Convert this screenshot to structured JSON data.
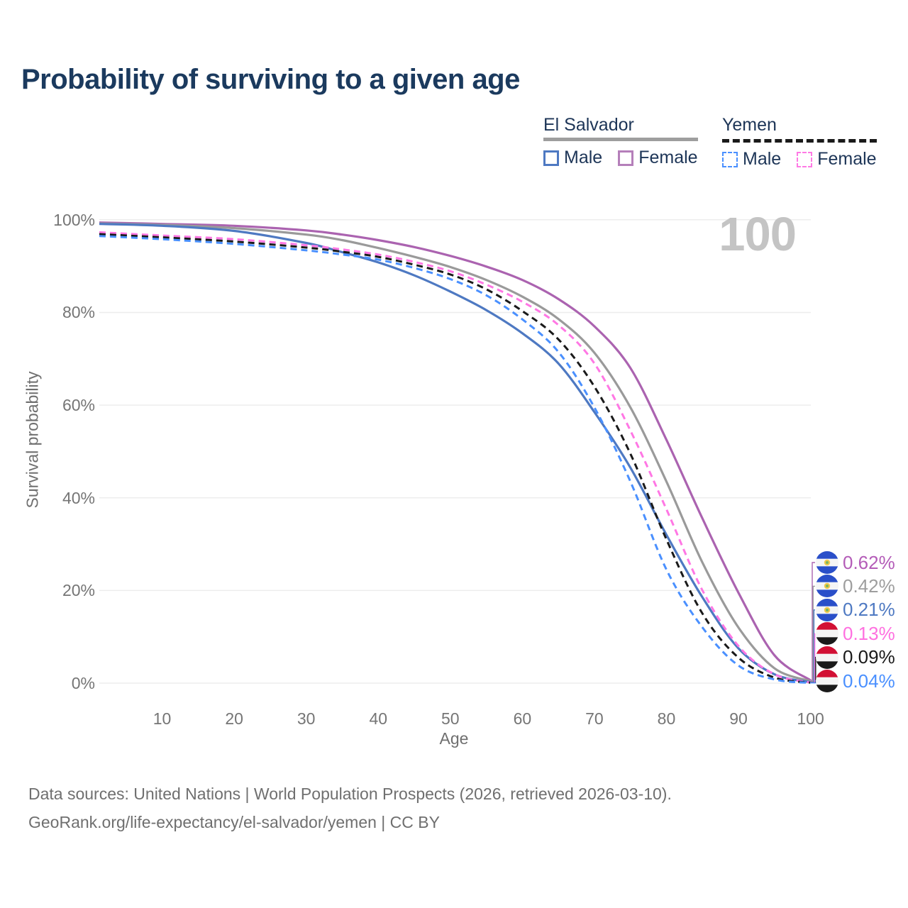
{
  "title": "Probability of surviving to a given age",
  "watermark": "100",
  "legend": {
    "groups": [
      {
        "name": "El Salvador",
        "line_style": "solid",
        "line_color": "#9e9e9e",
        "items": [
          {
            "label": "Male",
            "color": "#4e79c2",
            "dash": "solid"
          },
          {
            "label": "Female",
            "color": "#b57fba",
            "dash": "solid"
          }
        ]
      },
      {
        "name": "Yemen",
        "line_style": "dashed",
        "line_color": "#1a1a1a",
        "items": [
          {
            "label": "Male",
            "color": "#4a90ff",
            "dash": "dashed"
          },
          {
            "label": "Female",
            "color": "#ff7ae5",
            "dash": "dashed"
          }
        ]
      }
    ]
  },
  "chart_data": {
    "type": "line",
    "title": "Probability of surviving to a given age",
    "xlabel": "Age",
    "ylabel": "Survival probability",
    "xlim": [
      0,
      100
    ],
    "ylim": [
      0,
      100
    ],
    "grid": true,
    "legend_position": "top-right",
    "x_ticks": [
      10,
      20,
      30,
      40,
      50,
      60,
      70,
      80,
      90,
      100
    ],
    "y_ticks": [
      0,
      20,
      40,
      60,
      80,
      100
    ],
    "y_tick_format": "percent",
    "x": [
      0,
      10,
      20,
      30,
      35,
      40,
      45,
      50,
      55,
      60,
      65,
      70,
      75,
      80,
      85,
      90,
      95,
      100
    ],
    "series": [
      {
        "name": "El Salvador Female",
        "country": "El Salvador",
        "sex": "Female",
        "color": "#ab63b0",
        "dash": "solid",
        "flag": "el-salvador",
        "end_label": "0.62%",
        "end_label_color": "#b45cb8",
        "values": [
          99.4,
          99.1,
          98.7,
          97.7,
          96.8,
          95.6,
          94.1,
          92.2,
          89.9,
          87.0,
          82.9,
          77.0,
          68.0,
          52.5,
          35.5,
          19.5,
          6.0,
          0.62
        ]
      },
      {
        "name": "El Salvador",
        "country": "El Salvador",
        "sex": "Both",
        "color": "#9a9a9a",
        "dash": "solid",
        "flag": "el-salvador",
        "end_label": "0.42%",
        "end_label_color": "#9e9e9e",
        "values": [
          99.2,
          98.9,
          98.2,
          96.8,
          95.6,
          93.9,
          92.0,
          89.8,
          87.0,
          83.4,
          78.6,
          71.3,
          59.5,
          43.5,
          26.0,
          12.0,
          3.2,
          0.42
        ]
      },
      {
        "name": "El Salvador Male",
        "country": "El Salvador",
        "sex": "Male",
        "color": "#4e79c2",
        "dash": "solid",
        "flag": "el-salvador",
        "end_label": "0.21%",
        "end_label_color": "#4e79c2",
        "values": [
          99.1,
          98.7,
          97.6,
          95.0,
          93.0,
          90.8,
          88.0,
          84.5,
          80.5,
          75.5,
          69.0,
          58.5,
          46.5,
          32.0,
          18.5,
          7.5,
          1.9,
          0.21
        ]
      },
      {
        "name": "Yemen Female",
        "country": "Yemen",
        "sex": "Female",
        "color": "#ff77e4",
        "dash": "dashed",
        "flag": "yemen",
        "end_label": "0.13%",
        "end_label_color": "#ff70e0",
        "values": [
          97.3,
          96.6,
          95.8,
          94.5,
          93.6,
          92.5,
          90.9,
          88.9,
          86.0,
          82.3,
          77.3,
          69.0,
          54.5,
          37.5,
          20.0,
          8.0,
          1.9,
          0.13
        ]
      },
      {
        "name": "Yemen",
        "country": "Yemen",
        "sex": "Both",
        "color": "#1a1a1a",
        "dash": "dashed",
        "flag": "yemen",
        "end_label": "0.09%",
        "end_label_color": "#1a1a1a",
        "values": [
          96.9,
          96.2,
          95.3,
          94.0,
          93.1,
          92.0,
          90.3,
          88.2,
          85.0,
          80.3,
          74.2,
          64.0,
          49.5,
          31.0,
          15.0,
          5.5,
          1.2,
          0.09
        ]
      },
      {
        "name": "Yemen Male",
        "country": "Yemen",
        "sex": "Male",
        "color": "#4a90ff",
        "dash": "dashed",
        "flag": "yemen",
        "end_label": "0.04%",
        "end_label_color": "#4a90ff",
        "values": [
          96.5,
          95.8,
          94.8,
          93.4,
          92.5,
          91.4,
          89.6,
          87.2,
          83.7,
          78.5,
          71.5,
          59.5,
          43.5,
          24.5,
          12.0,
          3.8,
          0.8,
          0.04
        ]
      }
    ]
  },
  "footer": {
    "line1": "Data sources: United Nations | World Population Prospects (2026, retrieved 2026-03-10).",
    "line2": "GeoRank.org/life-expectancy/el-salvador/yemen | CC BY"
  },
  "colors": {
    "title": "#1b3a5e",
    "grid": "#ededed",
    "axis_text": "#757575",
    "watermark": "#c4c4c4"
  }
}
